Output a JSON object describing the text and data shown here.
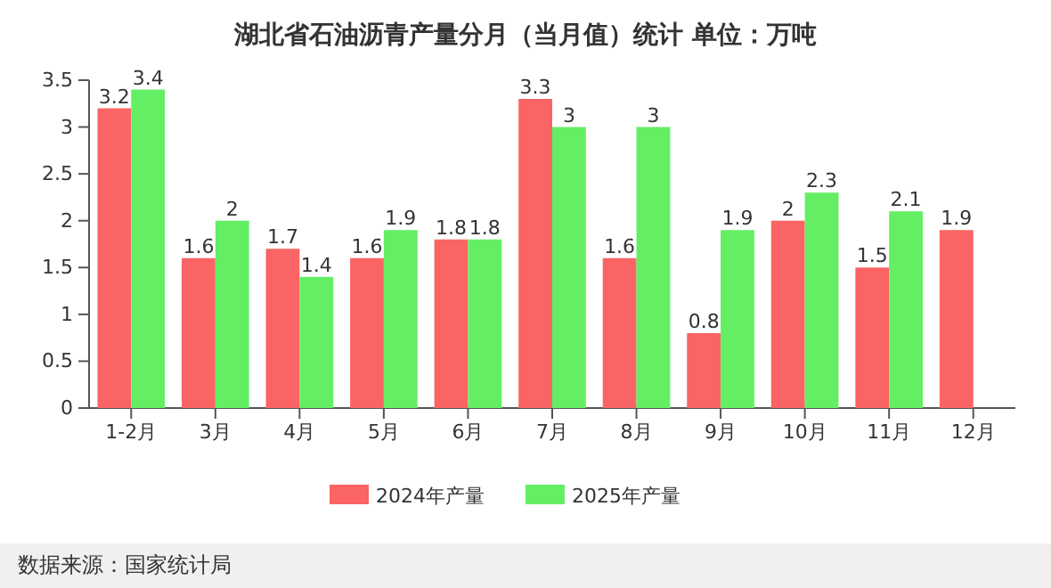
{
  "chart_data": {
    "type": "bar",
    "title": "湖北省石油沥青产量分月（当月值）统计 单位：万吨",
    "categories": [
      "1-2月",
      "3月",
      "4月",
      "5月",
      "6月",
      "7月",
      "8月",
      "9月",
      "10月",
      "11月",
      "12月"
    ],
    "series": [
      {
        "name": "2024年产量",
        "color": "#fa6464",
        "values": [
          3.2,
          1.6,
          1.7,
          1.6,
          1.8,
          3.3,
          1.6,
          0.8,
          2,
          1.5,
          1.9
        ]
      },
      {
        "name": "2025年产量",
        "color": "#64ee64",
        "values": [
          3.4,
          2,
          1.4,
          1.9,
          1.8,
          3,
          3,
          1.9,
          2.3,
          2.1,
          null
        ]
      }
    ],
    "ylim": [
      0,
      3.5
    ],
    "yticks": [
      0,
      0.5,
      1,
      1.5,
      2,
      2.5,
      3,
      3.5
    ],
    "data_labels": true,
    "legend": "bottom",
    "annotations": [
      "数据来源：国家统计局"
    ]
  }
}
